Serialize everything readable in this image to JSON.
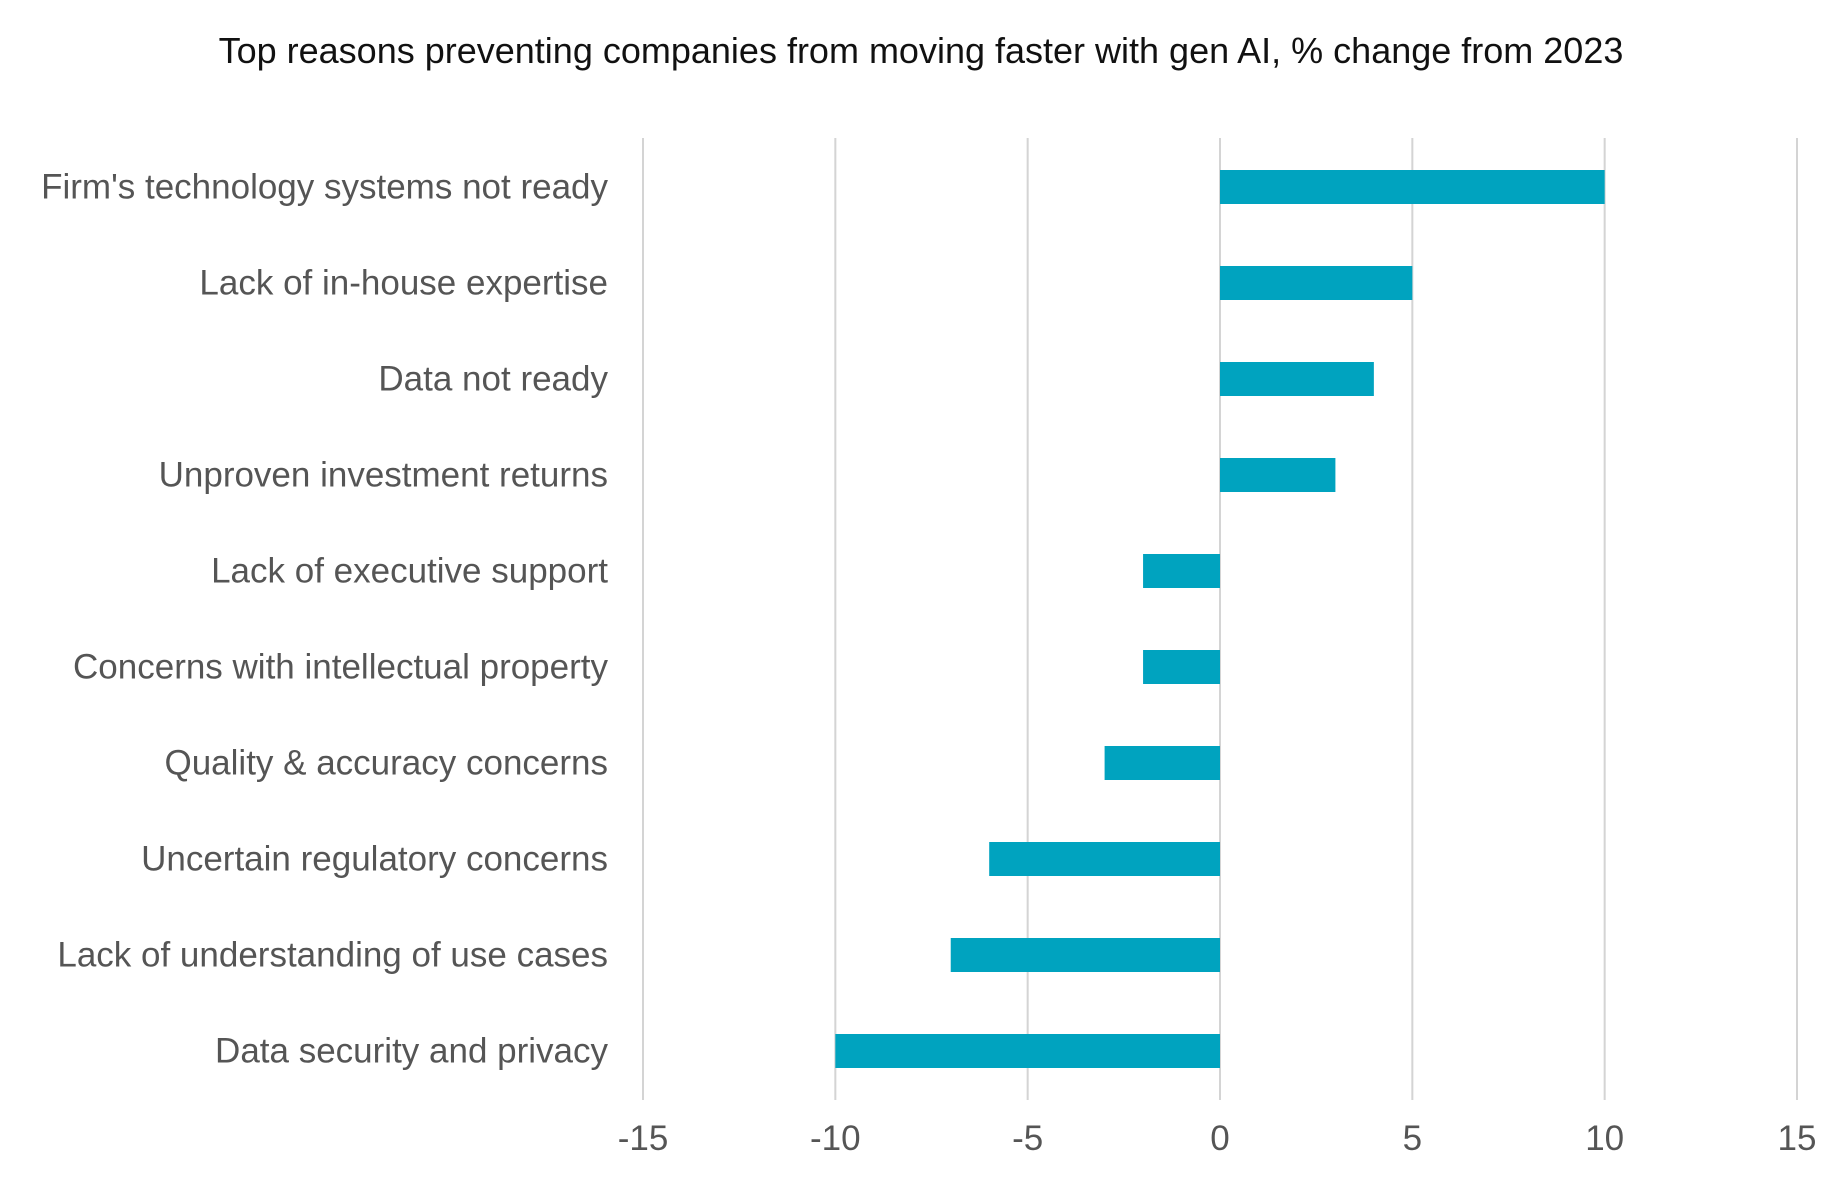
{
  "chart_data": {
    "type": "bar",
    "orientation": "horizontal",
    "title": "Top reasons preventing companies from moving faster with gen AI, % change from 2023",
    "xlabel": "",
    "ylabel": "",
    "categories": [
      "Firm's technology systems not ready",
      "Lack of in-house expertise",
      "Data not ready",
      "Unproven investment returns",
      "Lack of executive support",
      "Concerns with intellectual property",
      "Quality & accuracy concerns",
      "Uncertain regulatory concerns",
      "Lack of understanding of use cases",
      "Data security and privacy"
    ],
    "values": [
      10,
      5,
      4,
      3,
      -2,
      -2,
      -3,
      -6,
      -7,
      -10
    ],
    "xlim": [
      -15,
      15
    ],
    "xticks": [
      -15,
      -10,
      -5,
      0,
      5,
      10,
      15
    ],
    "xtick_labels": [
      "-15",
      "-10",
      "-5",
      "0",
      "5",
      "10",
      "15"
    ],
    "grid": true,
    "legend": "none",
    "bar_color": "#00A3BF",
    "grid_color": "#d4d4d4",
    "text_color": "#555555"
  }
}
